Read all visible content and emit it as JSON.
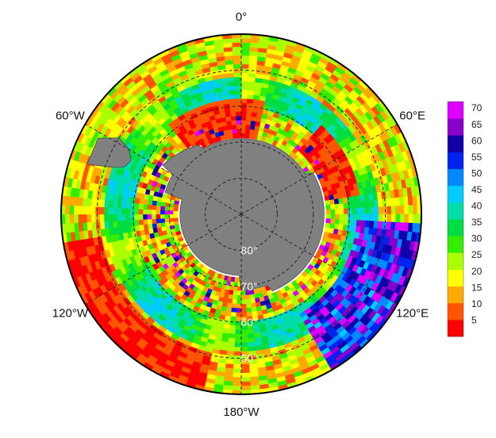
{
  "map": {
    "projection": "south-polar-stereographic",
    "land_color": "#808080",
    "background_color": "#ffffff",
    "longitude_labels": [
      {
        "text": "0°",
        "lon": 0
      },
      {
        "text": "60°E",
        "lon": 60
      },
      {
        "text": "120°E",
        "lon": 120
      },
      {
        "text": "180°W",
        "lon": 180
      },
      {
        "text": "120°W",
        "lon": -120
      },
      {
        "text": "60°W",
        "lon": -60
      }
    ],
    "latitude_labels": [
      {
        "text": "80°",
        "lat": -80
      },
      {
        "text": "70°",
        "lat": -70
      },
      {
        "text": "60°",
        "lat": -60
      },
      {
        "text": "50°",
        "lat": -50
      }
    ],
    "graticule_latitudes": [
      -80,
      -70,
      -60,
      -50
    ],
    "graticule_longitudes": [
      0,
      60,
      120,
      180,
      240,
      300
    ],
    "outer_latitude": -40
  },
  "colorbar": {
    "min": 0,
    "max": 72,
    "ticks": [
      "5",
      "10",
      "15",
      "20",
      "25",
      "30",
      "35",
      "40",
      "45",
      "50",
      "55",
      "60",
      "65",
      "70"
    ],
    "tick_values": [
      5,
      10,
      15,
      20,
      25,
      30,
      35,
      40,
      45,
      50,
      55,
      60,
      65,
      70
    ],
    "colors": [
      "#ff0000",
      "#ff5500",
      "#ffaa00",
      "#ffff00",
      "#aaff00",
      "#33ee00",
      "#00dd44",
      "#00ddaa",
      "#00ccff",
      "#0088ff",
      "#0022ee",
      "#1100aa",
      "#8800cc",
      "#dd00ff"
    ]
  }
}
